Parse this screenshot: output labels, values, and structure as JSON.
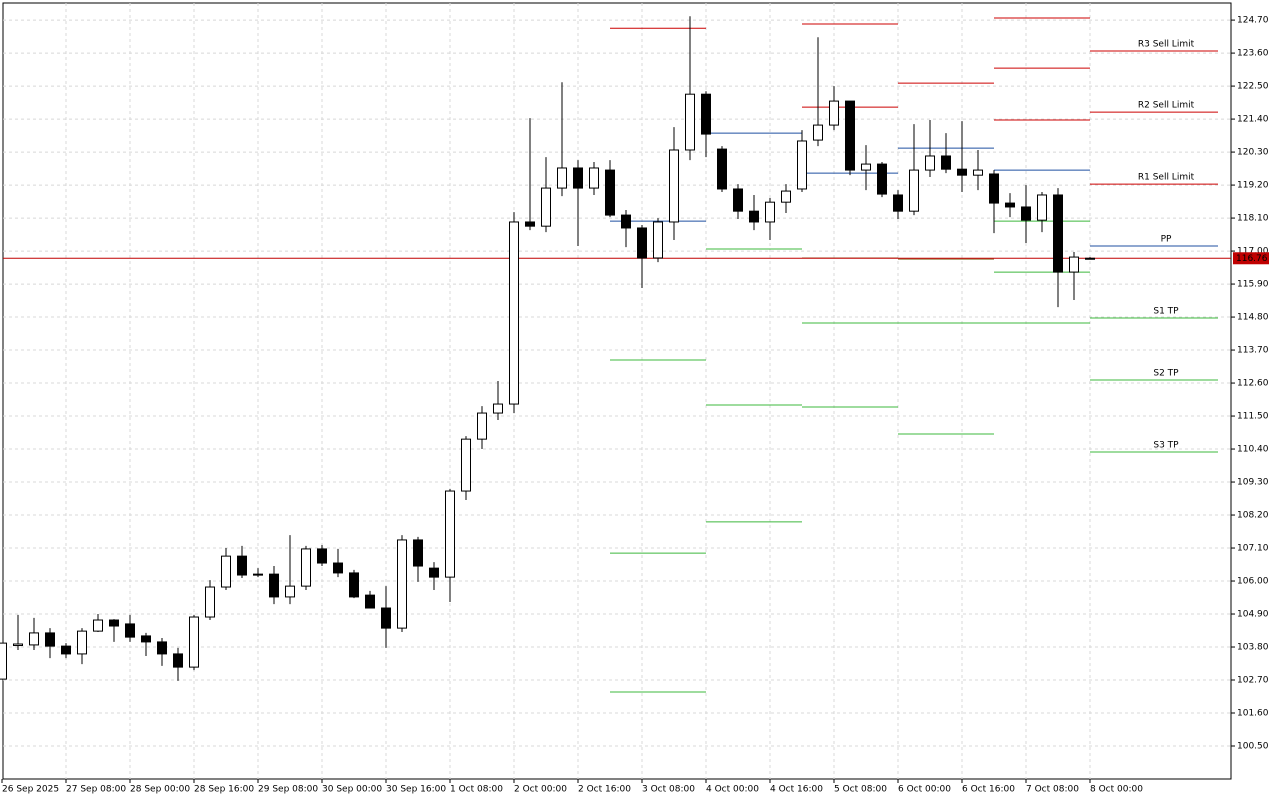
{
  "chart_data": {
    "type": "candlestick",
    "categories": [
      "26 Sep 2025",
      null,
      null,
      null,
      "27 Sep 08:00",
      null,
      null,
      null,
      "28 Sep 00:00",
      null,
      null,
      null,
      "28 Sep 16:00",
      null,
      null,
      null,
      "29 Sep 08:00",
      null,
      null,
      null,
      "30 Sep 00:00",
      null,
      null,
      null,
      "30 Sep 16:00",
      null,
      null,
      null,
      "1 Oct 08:00",
      null,
      null,
      null,
      "2 Oct 00:00",
      null,
      null,
      null,
      "2 Oct 16:00",
      null,
      null,
      null,
      "3 Oct 08:00",
      null,
      null,
      null,
      "4 Oct 00:00",
      null,
      null,
      null,
      "4 Oct 16:00",
      null,
      null,
      null,
      "5 Oct 08:00",
      null,
      null,
      null,
      "6 Oct 00:00",
      null,
      null,
      null,
      "6 Oct 16:00",
      null,
      null,
      null,
      "7 Oct 08:00",
      null,
      null,
      null,
      "8 Oct 00:00"
    ],
    "open": [
      102.73,
      103.85,
      103.87,
      104.27,
      103.83,
      103.57,
      104.33,
      104.7,
      104.57,
      104.17,
      103.97,
      103.57,
      103.13,
      104.8,
      105.8,
      106.83,
      106.2,
      106.23,
      105.47,
      105.83,
      107.07,
      106.6,
      106.27,
      105.53,
      105.1,
      104.43,
      107.37,
      106.43,
      106.13,
      109.0,
      110.73,
      111.6,
      111.9,
      117.97,
      117.83,
      119.1,
      119.77,
      119.1,
      119.7,
      118.2,
      117.77,
      116.77,
      117.97,
      120.37,
      122.23,
      120.4,
      119.07,
      118.33,
      117.97,
      118.63,
      119.07,
      120.7,
      121.2,
      122.0,
      119.7,
      119.9,
      118.87,
      118.33,
      119.7,
      120.17,
      119.73,
      119.53,
      119.57,
      118.6,
      118.47,
      118.03,
      118.87,
      116.3,
      116.76
    ],
    "high": [
      103.93,
      104.87,
      104.77,
      104.43,
      103.93,
      104.43,
      104.9,
      104.73,
      104.87,
      104.27,
      104.1,
      103.77,
      104.87,
      106.03,
      107.1,
      107.17,
      106.43,
      106.5,
      107.53,
      107.17,
      107.2,
      107.07,
      106.37,
      105.67,
      105.83,
      107.53,
      107.47,
      106.63,
      109.07,
      110.83,
      111.83,
      112.67,
      118.3,
      121.43,
      120.13,
      122.63,
      120.03,
      119.97,
      120.03,
      118.37,
      117.87,
      118.1,
      121.13,
      124.83,
      122.33,
      120.5,
      119.23,
      118.87,
      118.77,
      119.23,
      121.03,
      124.13,
      122.5,
      122.0,
      120.53,
      119.97,
      119.03,
      121.23,
      121.37,
      120.93,
      121.33,
      120.37,
      119.7,
      118.93,
      119.2,
      118.97,
      119.1,
      116.97,
      116.8
    ],
    "low": [
      102.73,
      103.7,
      103.7,
      103.43,
      103.43,
      103.23,
      104.3,
      103.97,
      103.97,
      103.5,
      103.17,
      102.67,
      103.03,
      104.7,
      105.7,
      106.1,
      106.13,
      105.23,
      105.23,
      105.7,
      106.5,
      106.13,
      105.43,
      105.1,
      103.77,
      104.3,
      105.97,
      105.7,
      105.3,
      108.7,
      110.4,
      111.37,
      111.6,
      117.7,
      117.63,
      118.83,
      117.17,
      118.87,
      118.13,
      117.13,
      115.77,
      116.63,
      117.37,
      120.03,
      120.13,
      118.97,
      118.07,
      117.7,
      117.37,
      118.27,
      118.97,
      120.5,
      121.03,
      119.53,
      119.03,
      118.8,
      118.07,
      118.2,
      119.47,
      119.6,
      118.97,
      119.03,
      117.6,
      118.13,
      117.27,
      117.63,
      115.13,
      115.37,
      116.73
    ],
    "close": [
      103.93,
      103.9,
      104.27,
      103.83,
      103.57,
      104.33,
      104.7,
      104.5,
      104.13,
      103.97,
      103.57,
      103.13,
      104.8,
      105.8,
      106.83,
      106.2,
      106.23,
      105.47,
      105.83,
      107.07,
      106.6,
      106.27,
      105.47,
      105.1,
      104.43,
      107.37,
      106.5,
      106.13,
      109.0,
      110.73,
      111.6,
      111.9,
      117.97,
      117.83,
      119.1,
      119.77,
      119.1,
      119.77,
      118.2,
      117.77,
      116.77,
      117.97,
      120.37,
      122.23,
      120.9,
      119.07,
      118.33,
      117.97,
      118.63,
      119.0,
      120.67,
      121.2,
      122.0,
      119.7,
      119.9,
      118.9,
      118.33,
      119.7,
      120.17,
      119.73,
      119.53,
      119.7,
      118.6,
      118.47,
      118.03,
      118.87,
      116.3,
      116.8,
      116.76
    ],
    "up_color": "#ffffff",
    "down_color": "#000000",
    "ylim": [
      99.4,
      125.27
    ],
    "yticks": [
      {
        "value": 124.7,
        "label": "124.70"
      },
      {
        "value": 123.6,
        "label": "123.60"
      },
      {
        "value": 122.5,
        "label": "122.50"
      },
      {
        "value": 121.4,
        "label": "121.40"
      },
      {
        "value": 120.3,
        "label": "120.30"
      },
      {
        "value": 119.2,
        "label": "119.20"
      },
      {
        "value": 118.1,
        "label": "118.10"
      },
      {
        "value": 117.0,
        "label": "117.00"
      },
      {
        "value": 115.9,
        "label": "115.90"
      },
      {
        "value": 114.8,
        "label": "114.80"
      },
      {
        "value": 113.7,
        "label": "113.70"
      },
      {
        "value": 112.6,
        "label": "112.60"
      },
      {
        "value": 111.5,
        "label": "111.50"
      },
      {
        "value": 110.4,
        "label": "110.40"
      },
      {
        "value": 109.3,
        "label": "109.30"
      },
      {
        "value": 108.2,
        "label": "108.20"
      },
      {
        "value": 107.1,
        "label": "107.10"
      },
      {
        "value": 106.0,
        "label": "106.00"
      },
      {
        "value": 104.9,
        "label": "104.90"
      },
      {
        "value": 103.8,
        "label": "103.80"
      },
      {
        "value": 102.7,
        "label": "102.70"
      },
      {
        "value": 101.6,
        "label": "101.60"
      },
      {
        "value": 100.5,
        "label": "100.50"
      }
    ],
    "grid": true,
    "current_price": {
      "value": 116.76,
      "label": "116.76",
      "color": "#c00000"
    },
    "levels": [
      {
        "span": [
          38,
          44
        ],
        "value": 124.43,
        "color": "#cc0000"
      },
      {
        "span": [
          38,
          44
        ],
        "value": 118.0,
        "color": "#1f4fa0"
      },
      {
        "span": [
          38,
          44
        ],
        "value": 113.37,
        "color": "#3cb83c"
      },
      {
        "span": [
          38,
          44
        ],
        "value": 106.93,
        "color": "#3cb83c"
      },
      {
        "span": [
          38,
          44
        ],
        "value": 102.3,
        "color": "#3cb83c"
      },
      {
        "span": [
          44,
          50
        ],
        "value": 120.93,
        "color": "#1f4fa0"
      },
      {
        "span": [
          44,
          50
        ],
        "value": 117.07,
        "color": "#3cb83c"
      },
      {
        "span": [
          44,
          50
        ],
        "value": 111.87,
        "color": "#3cb83c"
      },
      {
        "span": [
          44,
          50
        ],
        "value": 107.97,
        "color": "#3cb83c"
      },
      {
        "span": [
          50,
          56
        ],
        "value": 124.57,
        "color": "#cc0000"
      },
      {
        "span": [
          50,
          56
        ],
        "value": 121.8,
        "color": "#cc0000"
      },
      {
        "span": [
          50,
          56
        ],
        "value": 119.6,
        "color": "#1f4fa0"
      },
      {
        "span": [
          50,
          56
        ],
        "value": 116.77,
        "color": "#8a6a2a"
      },
      {
        "span": [
          50,
          56
        ],
        "value": 114.6,
        "color": "#3cb83c"
      },
      {
        "span": [
          50,
          56
        ],
        "value": 111.8,
        "color": "#3cb83c"
      },
      {
        "span": [
          56,
          62
        ],
        "value": 122.6,
        "color": "#cc0000"
      },
      {
        "span": [
          56,
          62
        ],
        "value": 120.43,
        "color": "#1f4fa0"
      },
      {
        "span": [
          56,
          62
        ],
        "value": 116.73,
        "color": "#8a6a2a"
      },
      {
        "span": [
          56,
          62
        ],
        "value": 114.6,
        "color": "#3cb83c"
      },
      {
        "span": [
          56,
          62
        ],
        "value": 110.9,
        "color": "#3cb83c"
      },
      {
        "span": [
          62,
          68
        ],
        "value": 124.77,
        "color": "#cc0000"
      },
      {
        "span": [
          62,
          68
        ],
        "value": 123.1,
        "color": "#cc0000"
      },
      {
        "span": [
          62,
          68
        ],
        "value": 121.37,
        "color": "#cc0000"
      },
      {
        "span": [
          62,
          68
        ],
        "value": 119.7,
        "color": "#1f4fa0"
      },
      {
        "span": [
          62,
          68
        ],
        "value": 118.0,
        "color": "#3cb83c"
      },
      {
        "span": [
          62,
          68
        ],
        "value": 116.3,
        "color": "#3cb83c"
      },
      {
        "span": [
          62,
          68
        ],
        "value": 114.6,
        "color": "#3cb83c"
      },
      {
        "span": [
          68,
          76
        ],
        "value": 123.67,
        "color": "#cc0000",
        "label": "R3 Sell Limit"
      },
      {
        "span": [
          68,
          76
        ],
        "value": 121.63,
        "color": "#cc0000",
        "label": "R2 Sell Limit"
      },
      {
        "span": [
          68,
          76
        ],
        "value": 119.23,
        "color": "#cc0000",
        "label": "R1 Sell Limit"
      },
      {
        "span": [
          68,
          76
        ],
        "value": 117.17,
        "color": "#1f4fa0",
        "label": "PP"
      },
      {
        "span": [
          68,
          76
        ],
        "value": 114.77,
        "color": "#3cb83c",
        "label": "S1 TP"
      },
      {
        "span": [
          68,
          76
        ],
        "value": 112.7,
        "color": "#3cb83c",
        "label": "S2 TP"
      },
      {
        "span": [
          68,
          76
        ],
        "value": 110.3,
        "color": "#3cb83c",
        "label": "S3 TP"
      }
    ]
  }
}
